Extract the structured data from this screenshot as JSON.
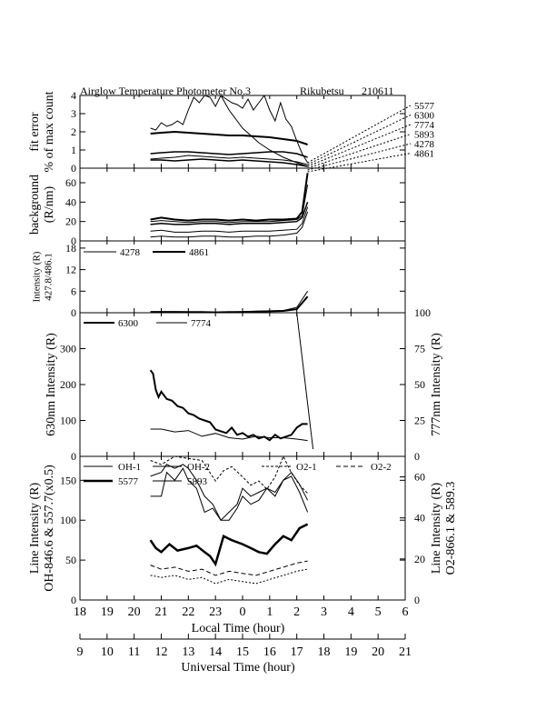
{
  "figure": {
    "title": "Airglow Temperature Photometer No.3",
    "site": "Rikubetsu",
    "date": "210611"
  },
  "xaxis_local": {
    "label": "Local Time (hour)",
    "ticks": [
      "18",
      "19",
      "20",
      "21",
      "22",
      "23",
      "0",
      "1",
      "2",
      "3",
      "4",
      "5",
      "6"
    ]
  },
  "xaxis_ut": {
    "label": "Universal Time (hour)",
    "ticks": [
      "9",
      "10",
      "11",
      "12",
      "13",
      "14",
      "15",
      "16",
      "17",
      "18",
      "19",
      "20",
      "21"
    ]
  },
  "chart_data": [
    {
      "id": "fit_error",
      "type": "line",
      "ylabel": [
        "fit error",
        "% of max count"
      ],
      "ylim": [
        0,
        4
      ],
      "yticks": [
        0,
        1,
        2,
        3,
        4
      ],
      "right_labels": [
        "5577",
        "6300",
        "7774",
        "5893",
        "4278",
        "4861"
      ],
      "series": [
        {
          "name": "5577",
          "x": [
            20.6,
            20.8,
            21.0,
            21.2,
            21.4,
            21.6,
            21.8,
            22.0,
            22.2,
            22.4,
            22.6,
            22.8,
            23.0,
            23.2,
            23.4,
            23.6,
            23.8,
            24.0,
            24.2,
            24.4,
            24.6,
            24.8,
            25.0,
            25.2,
            25.4,
            25.6,
            25.8,
            26.0,
            26.2,
            26.4
          ],
          "y": [
            2.2,
            2.1,
            2.5,
            2.3,
            2.4,
            2.6,
            2.4,
            3.2,
            3.9,
            3.6,
            4.0,
            3.9,
            3.4,
            4.0,
            3.8,
            3.6,
            3.5,
            3.3,
            3.8,
            3.2,
            3.6,
            4.0,
            3.2,
            2.6,
            3.6,
            2.7,
            2.3,
            1.5,
            0.8,
            0.3
          ]
        },
        {
          "name": "6300",
          "x": [
            20.6,
            21.0,
            21.5,
            22.0,
            22.5,
            23.0,
            23.5,
            24.0,
            24.5,
            25.0,
            25.5,
            26.0,
            26.4
          ],
          "y": [
            1.9,
            1.95,
            2.0,
            1.95,
            1.9,
            1.85,
            1.8,
            1.8,
            1.75,
            1.7,
            1.6,
            1.5,
            1.3
          ]
        },
        {
          "name": "7774",
          "x": [
            23.2,
            23.5,
            23.8,
            24.0,
            24.3,
            24.6,
            25.0,
            25.5,
            26.0,
            26.4
          ],
          "y": [
            4.0,
            3.2,
            2.6,
            2.2,
            1.8,
            1.4,
            1.0,
            0.6,
            0.3,
            0.1
          ]
        },
        {
          "name": "5893",
          "x": [
            20.6,
            21.0,
            21.5,
            22.0,
            22.5,
            23.0,
            23.5,
            24.0,
            24.5,
            25.0,
            25.5,
            26.0,
            26.4
          ],
          "y": [
            0.8,
            0.85,
            0.9,
            0.9,
            0.85,
            0.8,
            0.75,
            0.8,
            0.85,
            0.9,
            0.9,
            0.8,
            0.6
          ]
        },
        {
          "name": "4278",
          "x": [
            20.6,
            21.0,
            21.5,
            22.0,
            22.5,
            23.0,
            23.5,
            24.0,
            24.5,
            25.0,
            25.5,
            26.0,
            26.4
          ],
          "y": [
            0.5,
            0.55,
            0.6,
            0.7,
            0.65,
            0.6,
            0.55,
            0.6,
            0.55,
            0.5,
            0.45,
            0.35,
            0.2
          ]
        },
        {
          "name": "4861",
          "x": [
            20.6,
            21.0,
            21.5,
            22.0,
            22.5,
            23.0,
            23.5,
            24.0,
            24.5,
            25.0,
            25.5,
            26.0,
            26.4
          ],
          "y": [
            0.45,
            0.45,
            0.4,
            0.45,
            0.5,
            0.45,
            0.4,
            0.45,
            0.4,
            0.35,
            0.3,
            0.2,
            0.1
          ]
        }
      ]
    },
    {
      "id": "background",
      "type": "line",
      "ylabel": [
        "background",
        "(R/nm)"
      ],
      "ylim": [
        0,
        75
      ],
      "yticks": [
        0,
        20,
        40,
        60
      ],
      "series": [
        {
          "name": "5577",
          "x": [
            20.6,
            21.0,
            21.5,
            22.0,
            22.5,
            23.0,
            23.5,
            24.0,
            24.5,
            25.0,
            25.5,
            26.0,
            26.2,
            26.4
          ],
          "y": [
            22,
            24,
            22,
            21,
            22,
            22,
            21,
            22,
            21,
            22,
            22,
            23,
            30,
            70
          ]
        },
        {
          "name": "6300",
          "x": [
            20.6,
            21.0,
            21.5,
            22.0,
            22.5,
            23.0,
            23.5,
            24.0,
            24.5,
            25.0,
            25.5,
            26.0,
            26.2,
            26.4
          ],
          "y": [
            20,
            21,
            20,
            19,
            20,
            20,
            19,
            20,
            20,
            20,
            21,
            22,
            26,
            58
          ]
        },
        {
          "name": "5893",
          "x": [
            20.6,
            21.0,
            21.5,
            22.0,
            22.5,
            23.0,
            23.5,
            24.0,
            24.5,
            25.0,
            25.5,
            26.0,
            26.2,
            26.4
          ],
          "y": [
            17,
            18,
            17,
            17,
            18,
            18,
            17,
            18,
            18,
            18,
            19,
            20,
            24,
            40
          ]
        },
        {
          "name": "4278",
          "x": [
            20.6,
            21.0,
            21.5,
            22.0,
            22.5,
            23.0,
            23.5,
            24.0,
            24.5,
            25.0,
            25.5,
            26.0,
            26.2,
            26.4
          ],
          "y": [
            10,
            11,
            9,
            9,
            10,
            10,
            9,
            10,
            10,
            10,
            11,
            12,
            18,
            35
          ]
        },
        {
          "name": "4861",
          "x": [
            20.6,
            21.0,
            21.5,
            22.0,
            22.5,
            23.0,
            23.5,
            24.0,
            24.5,
            25.0,
            25.5,
            26.0,
            26.2,
            26.4
          ],
          "y": [
            4,
            5,
            4,
            4,
            5,
            5,
            4,
            4,
            5,
            5,
            6,
            8,
            14,
            30
          ]
        }
      ]
    },
    {
      "id": "ratio",
      "type": "line",
      "ylabel": [
        "Intensity (R)",
        "427.8/486.1"
      ],
      "ylim": [
        0,
        20
      ],
      "yticks": [
        0,
        6,
        12,
        18
      ],
      "series": [
        {
          "name": "4278",
          "x": [
            20.6,
            21.5,
            22.5,
            23.0,
            23.2,
            23.5,
            24.0,
            24.5,
            25.0,
            25.5,
            26.0,
            26.4
          ],
          "y": [
            0.3,
            0.3,
            0.2,
            -0.5,
            -1.0,
            0.2,
            0.3,
            0.4,
            0.5,
            0.6,
            1.5,
            6.0
          ]
        },
        {
          "name": "4861",
          "x": [
            20.6,
            21.5,
            22.5,
            23.0,
            23.5,
            24.0,
            24.5,
            25.0,
            25.5,
            26.0,
            26.4
          ],
          "y": [
            0.2,
            0.2,
            0.2,
            0.1,
            0.2,
            0.2,
            0.3,
            0.4,
            0.5,
            1.0,
            4.5
          ]
        }
      ]
    },
    {
      "id": "red_line",
      "type": "line",
      "ylabel": "630nm Intensity (R)",
      "y2label": "777nm Intensity (R)",
      "ylim": [
        0,
        400
      ],
      "yticks": [
        0,
        100,
        200,
        300
      ],
      "y2lim": [
        0,
        100
      ],
      "y2ticks": [
        0,
        25,
        50,
        75,
        100
      ],
      "series": [
        {
          "name": "6300",
          "x": [
            20.6,
            20.7,
            20.8,
            20.9,
            21.0,
            21.2,
            21.4,
            21.6,
            21.8,
            22.0,
            22.2,
            22.4,
            22.6,
            22.8,
            23.0,
            23.2,
            23.4,
            23.6,
            23.8,
            24.0,
            24.2,
            24.4,
            24.6,
            24.8,
            25.0,
            25.2,
            25.4,
            25.6,
            25.8,
            26.0,
            26.2,
            26.4
          ],
          "y": [
            240,
            230,
            185,
            165,
            180,
            160,
            155,
            140,
            135,
            120,
            115,
            105,
            100,
            95,
            75,
            70,
            65,
            80,
            60,
            65,
            55,
            60,
            50,
            55,
            45,
            60,
            50,
            55,
            60,
            80,
            90,
            90
          ]
        },
        {
          "name": "7774",
          "x": [
            20.6,
            21.0,
            21.5,
            22.0,
            22.5,
            23.0,
            23.5,
            24.0,
            24.5,
            25.0,
            25.5,
            26.0,
            26.4
          ],
          "y": [
            19,
            19,
            17,
            18,
            14,
            16,
            13,
            12,
            14,
            13,
            13,
            12,
            11
          ]
        }
      ]
    },
    {
      "id": "line_intensity",
      "type": "line",
      "ylabel": [
        "Line Intensity (R)",
        "OH-846.6 & 557.7(x0.5)"
      ],
      "y2label": [
        "Line Intensity (R)",
        "O2-866.1 & 589.3"
      ],
      "ylim": [
        0,
        180
      ],
      "yticks": [
        0,
        50,
        100,
        150
      ],
      "y2lim": [
        0,
        70
      ],
      "y2ticks": [
        0,
        20,
        40,
        60
      ],
      "legend": [
        "OH-1",
        "OH-2",
        "O2-1",
        "O2-2",
        "5577",
        "5893"
      ],
      "series": [
        {
          "name": "OH-1",
          "x": [
            20.6,
            21.0,
            21.2,
            21.5,
            21.8,
            22.0,
            22.3,
            22.6,
            22.9,
            23.2,
            23.5,
            23.8,
            24.0,
            24.3,
            24.6,
            24.9,
            25.2,
            25.5,
            25.8,
            26.1,
            26.4
          ],
          "y": [
            130,
            130,
            160,
            150,
            165,
            150,
            140,
            110,
            115,
            100,
            110,
            120,
            140,
            130,
            135,
            140,
            130,
            150,
            155,
            135,
            110
          ]
        },
        {
          "name": "OH-2",
          "x": [
            20.6,
            21.0,
            21.2,
            21.5,
            21.8,
            22.0,
            22.3,
            22.6,
            22.9,
            23.2,
            23.5,
            23.8,
            24.0,
            24.3,
            24.6,
            24.9,
            25.2,
            25.5,
            25.8,
            26.1,
            26.4
          ],
          "y": [
            155,
            160,
            170,
            165,
            170,
            165,
            150,
            130,
            120,
            100,
            100,
            115,
            130,
            120,
            125,
            140,
            135,
            150,
            160,
            145,
            125
          ]
        },
        {
          "name": "5577",
          "x": [
            20.6,
            20.8,
            21.0,
            21.3,
            21.6,
            22.0,
            22.3,
            22.6,
            22.8,
            23.0,
            23.3,
            23.6,
            24.0,
            24.3,
            24.6,
            24.9,
            25.2,
            25.5,
            25.8,
            26.1,
            26.4
          ],
          "y": [
            75,
            65,
            60,
            70,
            62,
            65,
            68,
            60,
            55,
            45,
            80,
            75,
            70,
            65,
            60,
            58,
            70,
            80,
            75,
            90,
            95
          ]
        },
        {
          "name": "O2-1",
          "x": [
            20.6,
            21.0,
            21.5,
            22.0,
            22.5,
            23.0,
            23.3,
            23.6,
            24.0,
            24.3,
            24.6,
            24.9,
            25.2,
            25.5,
            25.8,
            26.1,
            26.4
          ],
          "y": [
            68,
            66,
            70,
            69,
            68,
            58,
            63,
            65,
            60,
            56,
            58,
            54,
            60,
            70,
            62,
            56,
            52
          ]
        },
        {
          "name": "O2-2",
          "x": [
            20.6,
            21.0,
            21.5,
            22.0,
            22.5,
            23.0,
            23.5,
            24.0,
            24.5,
            25.0,
            25.5,
            26.0,
            26.4
          ],
          "y": [
            17,
            15,
            16,
            14,
            15,
            12,
            14,
            13,
            12,
            14,
            16,
            18,
            19
          ]
        },
        {
          "name": "5893",
          "x": [
            20.6,
            21.0,
            21.5,
            22.0,
            22.5,
            23.0,
            23.5,
            24.0,
            24.5,
            25.0,
            25.5,
            26.0,
            26.4
          ],
          "y": [
            12,
            11,
            12,
            10,
            11,
            8,
            10,
            9,
            8,
            10,
            12,
            14,
            15
          ]
        }
      ]
    }
  ]
}
